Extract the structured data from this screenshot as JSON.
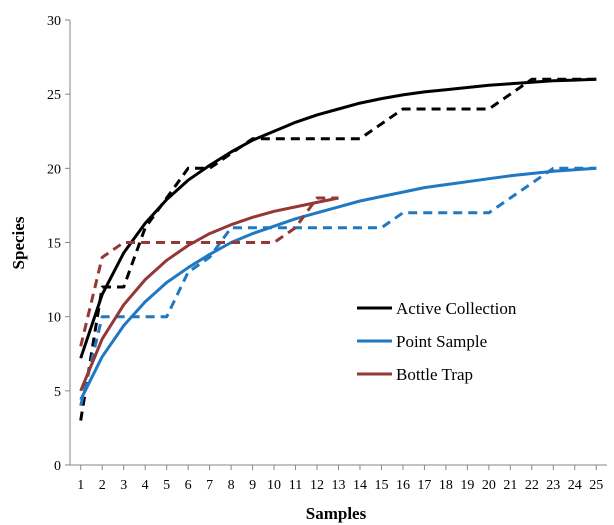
{
  "chart_data": {
    "type": "line",
    "title": "",
    "xlabel": "Samples",
    "ylabel": "Species",
    "x": [
      1,
      2,
      3,
      4,
      5,
      6,
      7,
      8,
      9,
      10,
      11,
      12,
      13,
      14,
      15,
      16,
      17,
      18,
      19,
      20,
      21,
      22,
      23,
      24,
      25
    ],
    "x_ticks": [
      "1",
      "2",
      "3",
      "4",
      "5",
      "6",
      "7",
      "8",
      "9",
      "10",
      "11",
      "12",
      "13",
      "14",
      "15",
      "16",
      "17",
      "18",
      "19",
      "20",
      "21",
      "22",
      "23",
      "24",
      "25"
    ],
    "xlim": [
      0.5,
      25.5
    ],
    "ylim": [
      0,
      30
    ],
    "y_ticks": [
      "0",
      "5",
      "10",
      "15",
      "20",
      "25",
      "30"
    ],
    "grid": false,
    "legend": "center-right",
    "series": [
      {
        "name": "Active Collection",
        "color": "#000000",
        "style": "solid",
        "x": [
          1,
          2,
          3,
          4,
          5,
          6,
          7,
          8,
          9,
          10,
          11,
          12,
          13,
          14,
          15,
          16,
          17,
          18,
          19,
          20,
          21,
          22,
          23,
          24,
          25
        ],
        "values": [
          7.2,
          11.5,
          14.3,
          16.3,
          17.9,
          19.2,
          20.2,
          21.1,
          21.9,
          22.5,
          23.1,
          23.6,
          24.0,
          24.4,
          24.7,
          24.95,
          25.15,
          25.3,
          25.45,
          25.6,
          25.7,
          25.8,
          25.9,
          25.95,
          26.0
        ]
      },
      {
        "name": "",
        "color": "#000000",
        "style": "dashed",
        "x": [
          1,
          2,
          3,
          4,
          5,
          6,
          7,
          8,
          9,
          10,
          11,
          12,
          13,
          14,
          15,
          16,
          17,
          18,
          19,
          20,
          21,
          22,
          23,
          24,
          25
        ],
        "values": [
          3,
          12,
          12,
          16,
          18,
          20,
          20,
          21,
          22,
          22,
          22,
          22,
          22,
          22,
          23,
          24,
          24,
          24,
          24,
          24,
          25,
          26,
          26,
          26,
          26
        ]
      },
      {
        "name": "Point Sample",
        "color": "#1f78c1",
        "style": "solid",
        "x": [
          1,
          2,
          3,
          4,
          5,
          6,
          7,
          8,
          9,
          10,
          11,
          12,
          13,
          14,
          15,
          16,
          17,
          18,
          19,
          20,
          21,
          22,
          23,
          24,
          25
        ],
        "values": [
          4.4,
          7.3,
          9.4,
          11.0,
          12.3,
          13.3,
          14.2,
          15.0,
          15.6,
          16.1,
          16.6,
          17.0,
          17.4,
          17.8,
          18.1,
          18.4,
          18.7,
          18.9,
          19.1,
          19.3,
          19.5,
          19.65,
          19.8,
          19.9,
          20.0
        ]
      },
      {
        "name": "",
        "color": "#1f78c1",
        "style": "dashed",
        "x": [
          1,
          2,
          3,
          4,
          5,
          6,
          7,
          8,
          9,
          10,
          11,
          12,
          13,
          14,
          15,
          16,
          17,
          18,
          19,
          20,
          21,
          22,
          23,
          24,
          25
        ],
        "values": [
          4,
          10,
          10,
          10,
          10,
          13,
          14,
          16,
          16,
          16,
          16,
          16,
          16,
          16,
          16,
          17,
          17,
          17,
          17,
          17,
          18,
          19,
          20,
          20,
          20
        ]
      },
      {
        "name": "Bottle Trap",
        "color": "#953735",
        "style": "solid",
        "x": [
          1,
          2,
          3,
          4,
          5,
          6,
          7,
          8,
          9,
          10,
          11,
          12,
          13
        ],
        "values": [
          5.0,
          8.5,
          10.8,
          12.5,
          13.8,
          14.8,
          15.6,
          16.2,
          16.7,
          17.1,
          17.4,
          17.7,
          18.0
        ]
      },
      {
        "name": "",
        "color": "#953735",
        "style": "dashed",
        "x": [
          1,
          2,
          3,
          4,
          5,
          6,
          7,
          8,
          9,
          10,
          11,
          12,
          13
        ],
        "values": [
          8,
          14,
          15,
          15,
          15,
          15,
          15,
          15,
          15,
          15,
          16,
          18,
          18
        ]
      }
    ]
  }
}
